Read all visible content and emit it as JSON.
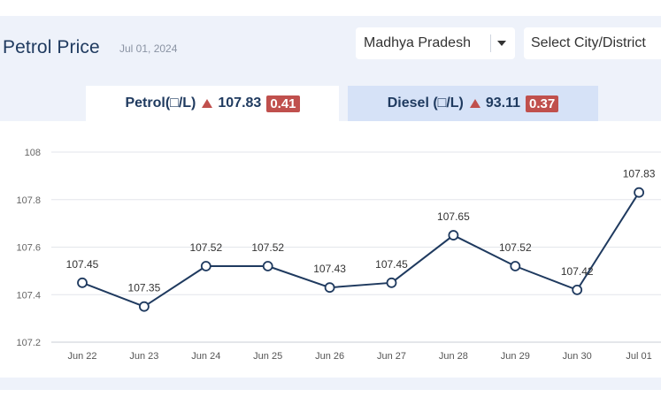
{
  "header": {
    "title": "Petrol Price",
    "date": "Jul 01, 2024",
    "state_select": "Madhya Pradesh",
    "city_select": "Select City/District"
  },
  "tabs": [
    {
      "label": "Petrol(□/L)",
      "price": "107.83",
      "change": "0.41"
    },
    {
      "label": "Diesel (□/L)",
      "price": "93.11",
      "change": "0.37"
    }
  ],
  "colors": {
    "line": "#1f3a5f",
    "up_badge": "#c0504d",
    "grid": "#e3e6eb"
  },
  "chart_data": {
    "type": "line",
    "title": "",
    "xlabel": "",
    "ylabel": "",
    "categories": [
      "Jun 22",
      "Jun 23",
      "Jun 24",
      "Jun 25",
      "Jun 26",
      "Jun 27",
      "Jun 28",
      "Jun 29",
      "Jun 30",
      "Jul 01"
    ],
    "series": [
      {
        "values": [
          107.45,
          107.35,
          107.52,
          107.52,
          107.43,
          107.45,
          107.65,
          107.52,
          107.42,
          107.83
        ]
      }
    ],
    "yticks": [
      107.2,
      107.4,
      107.6,
      107.8,
      108
    ],
    "ylim": [
      107.2,
      108
    ],
    "grid": true,
    "legend": "none"
  }
}
